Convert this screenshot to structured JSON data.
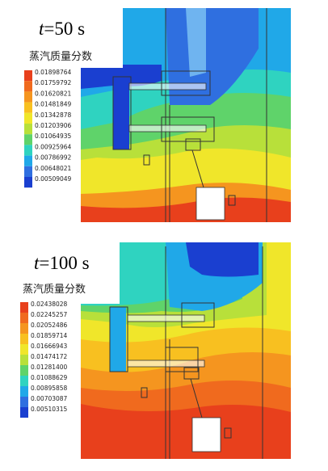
{
  "panels": [
    {
      "time_symbol": "t",
      "time_text": "=50 s",
      "legend_title": "蒸汽质量分数",
      "legend_values": [
        "0.01898764",
        "0.01759792",
        "0.01620821",
        "0.01481849",
        "0.01342878",
        "0.01203906",
        "0.01064935",
        "0.00925964",
        "0.00786992",
        "0.00648021",
        "0.00509049"
      ]
    },
    {
      "time_symbol": "t",
      "time_text": "=100 s",
      "legend_title": "蒸汽质量分数",
      "legend_values": [
        "0.02438028",
        "0.02245257",
        "0.02052486",
        "0.01859714",
        "0.01666943",
        "0.01474172",
        "0.01281400",
        "0.01088629",
        "0.00895858",
        "0.00703087",
        "0.00510315"
      ]
    }
  ]
}
